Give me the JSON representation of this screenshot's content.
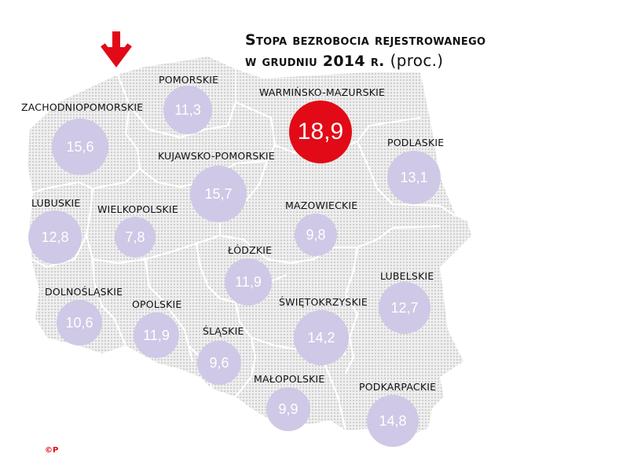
{
  "title": {
    "line1": "Stopa bezrobocia rejestrowanego",
    "line2": "w grudniu 2014 r.",
    "unit": "(proc.)"
  },
  "colors": {
    "bubble": "#cfc8e6",
    "highlight": "#e20a16",
    "arrow": "#e20a16",
    "map_fill": "#d9d9d9"
  },
  "regions": [
    {
      "name": "POMORSKIE",
      "value": "11,3"
    },
    {
      "name": "ZACHODNIOPOMORSKIE",
      "value": "15,6"
    },
    {
      "name": "WARMIŃSKO-MAZURSKIE",
      "value": "18,9"
    },
    {
      "name": "KUJAWSKO-POMORSKIE",
      "value": "15,7"
    },
    {
      "name": "PODLASKIE",
      "value": "13,1"
    },
    {
      "name": "LUBUSKIE",
      "value": "12,8"
    },
    {
      "name": "WIELKOPOLSKIE",
      "value": "7,8"
    },
    {
      "name": "MAZOWIECKIE",
      "value": "9,8"
    },
    {
      "name": "ŁÓDZKIE",
      "value": "11,9"
    },
    {
      "name": "LUBELSKIE",
      "value": "12,7"
    },
    {
      "name": "DOLNOŚLĄSKIE",
      "value": "10,6"
    },
    {
      "name": "OPOLSKIE",
      "value": "11,9"
    },
    {
      "name": "ŚWIĘTOKRZYSKIE",
      "value": "14,2"
    },
    {
      "name": "ŚLĄSKIE",
      "value": "9,6"
    },
    {
      "name": "MAŁOPOLSKIE",
      "value": "9,9"
    },
    {
      "name": "PODKARPACKIE",
      "value": "14,8"
    }
  ],
  "copyright": "©P"
}
